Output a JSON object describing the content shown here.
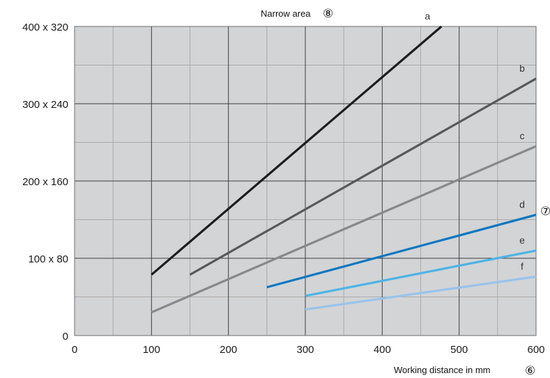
{
  "chart_data": {
    "type": "line",
    "title": "Narrow area",
    "title_marker": "⑧",
    "xlabel": "Working distance in mm",
    "xlabel_marker": "⑥",
    "series_marker": "⑦",
    "xlim": [
      0,
      600
    ],
    "ylim": [
      0,
      320
    ],
    "x_ticks": [
      0,
      100,
      200,
      300,
      400,
      500,
      600
    ],
    "y_ticks": [
      {
        "value": 0,
        "label": "0"
      },
      {
        "value": 80,
        "label": "100 x 80"
      },
      {
        "value": 160,
        "label": "200 x 160"
      },
      {
        "value": 240,
        "label": "300 x 240"
      },
      {
        "value": 320,
        "label": "400 x 320"
      }
    ],
    "grid": true,
    "background": "#d3d4d5",
    "series": [
      {
        "name": "a",
        "color": "#1c1c1e",
        "x": [
          100,
          477
        ],
        "y": [
          63,
          320
        ]
      },
      {
        "name": "b",
        "color": "#58585a",
        "x": [
          150,
          600
        ],
        "y": [
          63,
          266
        ]
      },
      {
        "name": "c",
        "color": "#87888a",
        "x": [
          100,
          600
        ],
        "y": [
          24,
          196
        ]
      },
      {
        "name": "d",
        "color": "#0a77c2",
        "x": [
          250,
          600
        ],
        "y": [
          50,
          125
        ]
      },
      {
        "name": "e",
        "color": "#4db4e6",
        "x": [
          300,
          600
        ],
        "y": [
          41,
          88
        ]
      },
      {
        "name": "f",
        "color": "#98c3ec",
        "x": [
          300,
          600
        ],
        "y": [
          27,
          61
        ]
      }
    ]
  }
}
